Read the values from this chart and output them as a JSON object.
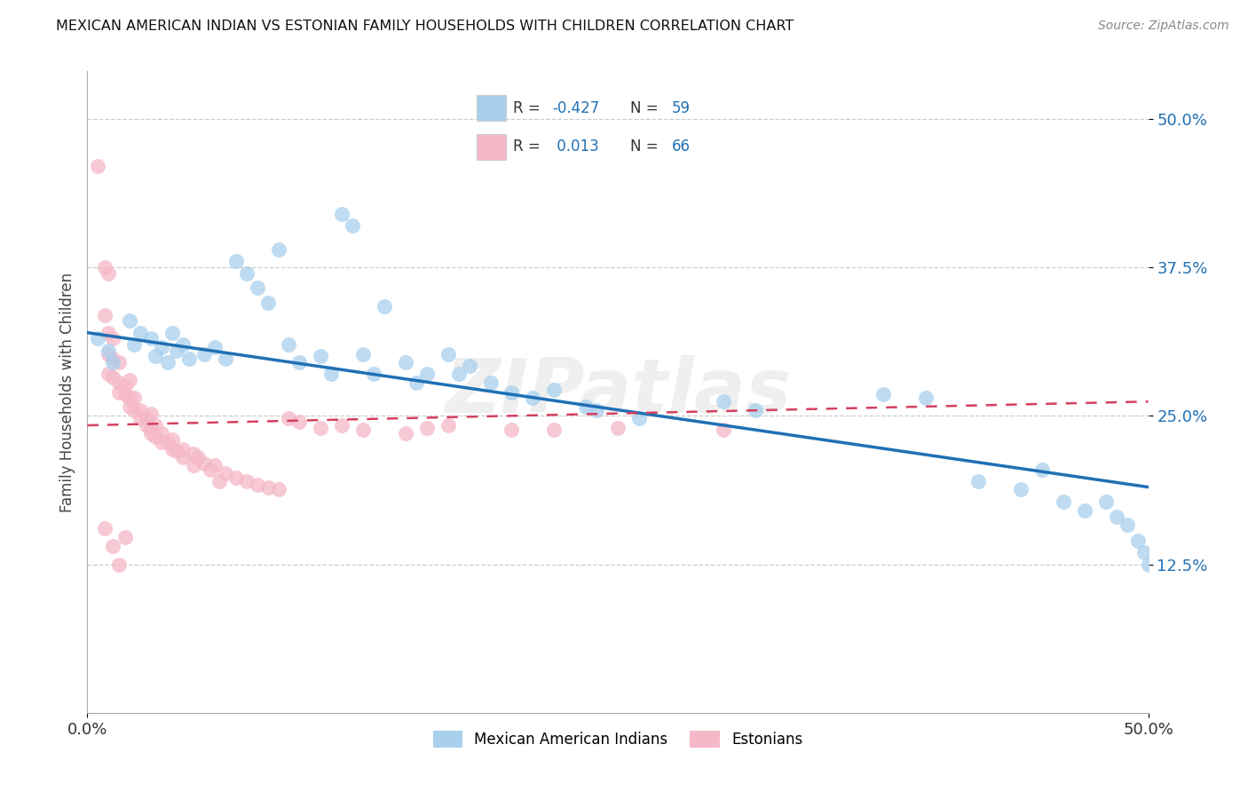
{
  "title": "MEXICAN AMERICAN INDIAN VS ESTONIAN FAMILY HOUSEHOLDS WITH CHILDREN CORRELATION CHART",
  "source": "Source: ZipAtlas.com",
  "ylabel": "Family Households with Children",
  "legend_label1": "Mexican American Indians",
  "legend_label2": "Estonians",
  "xlim": [
    0.0,
    0.5
  ],
  "ylim": [
    0.0,
    0.54
  ],
  "yticks": [
    0.125,
    0.25,
    0.375,
    0.5
  ],
  "ytick_labels": [
    "12.5%",
    "25.0%",
    "37.5%",
    "50.0%"
  ],
  "xtick_labels": [
    "0.0%",
    "50.0%"
  ],
  "xticks": [
    0.0,
    0.5
  ],
  "watermark": "ZIPatlas",
  "blue_color": "#a8d0ed",
  "pink_color": "#f5b8c8",
  "blue_line_color": "#2070b4",
  "pink_line_color": "#d44060",
  "blue_scatter": [
    [
      0.005,
      0.315
    ],
    [
      0.01,
      0.305
    ],
    [
      0.012,
      0.295
    ],
    [
      0.02,
      0.33
    ],
    [
      0.022,
      0.31
    ],
    [
      0.025,
      0.32
    ],
    [
      0.03,
      0.315
    ],
    [
      0.032,
      0.3
    ],
    [
      0.035,
      0.308
    ],
    [
      0.038,
      0.295
    ],
    [
      0.04,
      0.32
    ],
    [
      0.042,
      0.305
    ],
    [
      0.045,
      0.31
    ],
    [
      0.048,
      0.298
    ],
    [
      0.055,
      0.302
    ],
    [
      0.06,
      0.308
    ],
    [
      0.065,
      0.298
    ],
    [
      0.07,
      0.38
    ],
    [
      0.075,
      0.37
    ],
    [
      0.08,
      0.358
    ],
    [
      0.085,
      0.345
    ],
    [
      0.09,
      0.39
    ],
    [
      0.095,
      0.31
    ],
    [
      0.1,
      0.295
    ],
    [
      0.11,
      0.3
    ],
    [
      0.115,
      0.285
    ],
    [
      0.12,
      0.42
    ],
    [
      0.125,
      0.41
    ],
    [
      0.13,
      0.302
    ],
    [
      0.135,
      0.285
    ],
    [
      0.14,
      0.342
    ],
    [
      0.15,
      0.295
    ],
    [
      0.155,
      0.278
    ],
    [
      0.16,
      0.285
    ],
    [
      0.17,
      0.302
    ],
    [
      0.175,
      0.285
    ],
    [
      0.18,
      0.292
    ],
    [
      0.19,
      0.278
    ],
    [
      0.2,
      0.27
    ],
    [
      0.21,
      0.265
    ],
    [
      0.22,
      0.272
    ],
    [
      0.235,
      0.258
    ],
    [
      0.24,
      0.255
    ],
    [
      0.26,
      0.248
    ],
    [
      0.3,
      0.262
    ],
    [
      0.315,
      0.255
    ],
    [
      0.375,
      0.268
    ],
    [
      0.395,
      0.265
    ],
    [
      0.42,
      0.195
    ],
    [
      0.44,
      0.188
    ],
    [
      0.45,
      0.205
    ],
    [
      0.46,
      0.178
    ],
    [
      0.47,
      0.17
    ],
    [
      0.48,
      0.178
    ],
    [
      0.485,
      0.165
    ],
    [
      0.49,
      0.158
    ],
    [
      0.495,
      0.145
    ],
    [
      0.498,
      0.135
    ],
    [
      0.5,
      0.125
    ]
  ],
  "pink_scatter": [
    [
      0.005,
      0.46
    ],
    [
      0.008,
      0.375
    ],
    [
      0.01,
      0.37
    ],
    [
      0.008,
      0.335
    ],
    [
      0.01,
      0.32
    ],
    [
      0.012,
      0.315
    ],
    [
      0.01,
      0.302
    ],
    [
      0.012,
      0.298
    ],
    [
      0.015,
      0.295
    ],
    [
      0.01,
      0.285
    ],
    [
      0.012,
      0.282
    ],
    [
      0.015,
      0.278
    ],
    [
      0.018,
      0.275
    ],
    [
      0.02,
      0.28
    ],
    [
      0.015,
      0.27
    ],
    [
      0.018,
      0.268
    ],
    [
      0.02,
      0.265
    ],
    [
      0.022,
      0.265
    ],
    [
      0.02,
      0.258
    ],
    [
      0.022,
      0.255
    ],
    [
      0.025,
      0.255
    ],
    [
      0.025,
      0.248
    ],
    [
      0.028,
      0.248
    ],
    [
      0.03,
      0.252
    ],
    [
      0.028,
      0.242
    ],
    [
      0.03,
      0.24
    ],
    [
      0.032,
      0.242
    ],
    [
      0.03,
      0.235
    ],
    [
      0.032,
      0.232
    ],
    [
      0.035,
      0.235
    ],
    [
      0.035,
      0.228
    ],
    [
      0.038,
      0.228
    ],
    [
      0.04,
      0.23
    ],
    [
      0.04,
      0.222
    ],
    [
      0.042,
      0.22
    ],
    [
      0.045,
      0.222
    ],
    [
      0.045,
      0.215
    ],
    [
      0.05,
      0.218
    ],
    [
      0.052,
      0.215
    ],
    [
      0.05,
      0.208
    ],
    [
      0.055,
      0.21
    ],
    [
      0.058,
      0.205
    ],
    [
      0.06,
      0.208
    ],
    [
      0.065,
      0.202
    ],
    [
      0.062,
      0.195
    ],
    [
      0.07,
      0.198
    ],
    [
      0.075,
      0.195
    ],
    [
      0.08,
      0.192
    ],
    [
      0.085,
      0.19
    ],
    [
      0.09,
      0.188
    ],
    [
      0.095,
      0.248
    ],
    [
      0.1,
      0.245
    ],
    [
      0.11,
      0.24
    ],
    [
      0.12,
      0.242
    ],
    [
      0.13,
      0.238
    ],
    [
      0.15,
      0.235
    ],
    [
      0.16,
      0.24
    ],
    [
      0.17,
      0.242
    ],
    [
      0.2,
      0.238
    ],
    [
      0.22,
      0.238
    ],
    [
      0.25,
      0.24
    ],
    [
      0.3,
      0.238
    ],
    [
      0.008,
      0.155
    ],
    [
      0.012,
      0.14
    ],
    [
      0.015,
      0.125
    ],
    [
      0.018,
      0.148
    ]
  ],
  "blue_trend_x": [
    0.0,
    0.5
  ],
  "blue_trend_y": [
    0.32,
    0.19
  ],
  "pink_trend_x": [
    0.0,
    0.5
  ],
  "pink_trend_y": [
    0.242,
    0.262
  ]
}
